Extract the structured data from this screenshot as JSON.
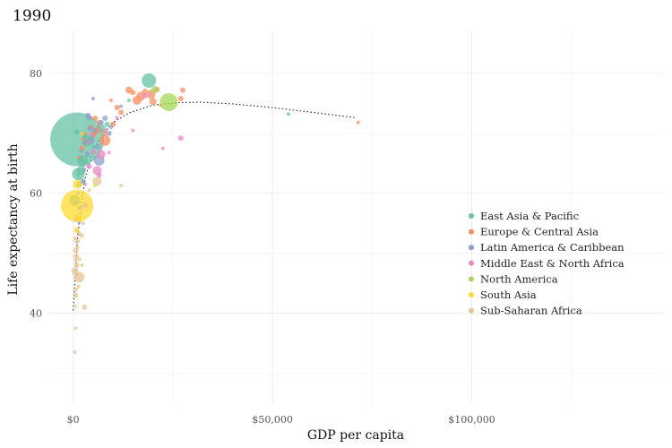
{
  "chart_data": {
    "type": "scatter",
    "title": "1990",
    "xlabel": "GDP per capita",
    "ylabel": "Life expectancy at birth",
    "xlim": [
      -6000,
      148000
    ],
    "ylim": [
      25,
      87
    ],
    "x_ticks": [
      0,
      50000,
      100000
    ],
    "x_tick_labels": [
      "$0",
      "$50,000",
      "$100,000"
    ],
    "y_ticks": [
      40,
      60,
      80
    ],
    "y_tick_labels": [
      "40",
      "60",
      "80"
    ],
    "x_minor": [
      25000,
      75000,
      125000
    ],
    "y_minor": [
      30,
      50,
      70
    ],
    "grid": true,
    "legend_position": "right",
    "series": [
      {
        "name": "East Asia & Pacific",
        "color": "#66c2a5",
        "points": [
          [
            1000,
            69,
            30
          ],
          [
            400,
            58.8,
            6
          ],
          [
            1300,
            63.2,
            7
          ],
          [
            2400,
            65.3,
            6
          ],
          [
            2000,
            63.8,
            5
          ],
          [
            1800,
            65.8,
            4
          ],
          [
            3500,
            68.7,
            6
          ],
          [
            7000,
            70.8,
            5
          ],
          [
            19000,
            78.8,
            8
          ],
          [
            54000,
            73.2,
            2
          ],
          [
            1500,
            61.5,
            3
          ],
          [
            3000,
            69.5,
            3
          ],
          [
            5000,
            67.8,
            2
          ],
          [
            900,
            70.2,
            3
          ],
          [
            2200,
            67.3,
            2
          ],
          [
            2600,
            61.8,
            2
          ],
          [
            1400,
            57.6,
            2
          ],
          [
            1200,
            63,
            2
          ],
          [
            14000,
            75.5,
            2
          ],
          [
            8500,
            71.5,
            3
          ]
        ]
      },
      {
        "name": "Europe & Central Asia",
        "color": "#fc8d62",
        "points": [
          [
            19500,
            76.5,
            5
          ],
          [
            17000,
            76.2,
            5
          ],
          [
            14000,
            77.2,
            4
          ],
          [
            16000,
            75.5,
            5
          ],
          [
            20000,
            75.3,
            4
          ],
          [
            27000,
            75.8,
            3
          ],
          [
            27500,
            77.2,
            3
          ],
          [
            71500,
            71.8,
            2
          ],
          [
            8000,
            68.8,
            6
          ],
          [
            5000,
            69.8,
            4
          ],
          [
            6000,
            70.5,
            4
          ],
          [
            4500,
            71,
            3
          ],
          [
            3500,
            68.5,
            3
          ],
          [
            10000,
            71.5,
            3
          ],
          [
            12000,
            73.5,
            3
          ],
          [
            11000,
            74.3,
            3
          ],
          [
            15000,
            76.8,
            3
          ],
          [
            2200,
            67.5,
            3
          ],
          [
            1500,
            66,
            2
          ],
          [
            5500,
            72.5,
            3
          ],
          [
            6500,
            71.8,
            3
          ],
          [
            18000,
            77,
            3
          ],
          [
            22000,
            74.7,
            2
          ],
          [
            9500,
            75.5,
            2
          ],
          [
            21000,
            77.3,
            3
          ],
          [
            8000,
            70,
            3
          ],
          [
            3000,
            70,
            2
          ],
          [
            2500,
            69,
            2
          ]
        ]
      },
      {
        "name": "Latin America & Caribbean",
        "color": "#8da0cb",
        "points": [
          [
            6500,
            65.5,
            6
          ],
          [
            4500,
            68.8,
            4
          ],
          [
            4000,
            72.6,
            3
          ],
          [
            3000,
            68.5,
            3
          ],
          [
            9000,
            70,
            3
          ],
          [
            7000,
            71.8,
            3
          ],
          [
            5000,
            75.8,
            2
          ],
          [
            2500,
            62,
            3
          ],
          [
            1500,
            55.2,
            2
          ],
          [
            3500,
            66.5,
            3
          ],
          [
            5500,
            70.5,
            3
          ],
          [
            8000,
            72.5,
            3
          ],
          [
            4200,
            70.8,
            3
          ],
          [
            6200,
            67.8,
            3
          ],
          [
            2800,
            64,
            2
          ],
          [
            3700,
            73,
            3
          ],
          [
            4800,
            69.5,
            2
          ],
          [
            9500,
            71,
            2
          ],
          [
            12000,
            74.5,
            2
          ],
          [
            2000,
            67,
            2
          ]
        ]
      },
      {
        "name": "Middle East & North Africa",
        "color": "#e78ac3",
        "points": [
          [
            6000,
            63.8,
            5
          ],
          [
            7000,
            66.5,
            5
          ],
          [
            4000,
            64.5,
            3
          ],
          [
            27000,
            69.2,
            3
          ],
          [
            22500,
            67.5,
            2
          ],
          [
            9000,
            66.8,
            2
          ],
          [
            11000,
            72.6,
            2
          ],
          [
            15000,
            70.5,
            2
          ],
          [
            5000,
            67,
            3
          ],
          [
            3000,
            61.5,
            2
          ],
          [
            4500,
            69.8,
            2
          ],
          [
            18000,
            76.3,
            3
          ],
          [
            6500,
            63,
            3
          ],
          [
            8000,
            70.5,
            2
          ]
        ]
      },
      {
        "name": "North America",
        "color": "#a6d854",
        "points": [
          [
            24000,
            75.2,
            10
          ],
          [
            20500,
            77.3,
            4
          ]
        ]
      },
      {
        "name": "South Asia",
        "color": "#ffd92f",
        "points": [
          [
            1000,
            57.9,
            18
          ],
          [
            1100,
            61.5,
            5
          ],
          [
            1300,
            55.8,
            4
          ],
          [
            900,
            53.8,
            3
          ],
          [
            2200,
            69.9,
            2
          ],
          [
            5500,
            61.3,
            2
          ],
          [
            700,
            56,
            2
          ],
          [
            800,
            54,
            2
          ]
        ]
      },
      {
        "name": "Sub-Saharan Africa",
        "color": "#e5c494",
        "points": [
          [
            1500,
            46,
            6
          ],
          [
            400,
            47,
            4
          ],
          [
            600,
            43,
            3
          ],
          [
            800,
            49.5,
            3
          ],
          [
            1000,
            52,
            3
          ],
          [
            700,
            50.5,
            3
          ],
          [
            2000,
            53,
            3
          ],
          [
            500,
            41.2,
            2
          ],
          [
            2800,
            41,
            3
          ],
          [
            600,
            37.5,
            2
          ],
          [
            400,
            33.5,
            2
          ],
          [
            1300,
            44.5,
            2
          ],
          [
            900,
            48,
            3
          ],
          [
            1100,
            51,
            2
          ],
          [
            600,
            55.5,
            2
          ],
          [
            3000,
            58,
            3
          ],
          [
            12000,
            61.3,
            2
          ],
          [
            4000,
            60.5,
            2
          ],
          [
            1800,
            57.5,
            2
          ],
          [
            900,
            46.5,
            2
          ],
          [
            700,
            44,
            2
          ],
          [
            1600,
            49,
            2
          ],
          [
            2500,
            55,
            2
          ],
          [
            500,
            52.5,
            2
          ],
          [
            800,
            58.5,
            2
          ],
          [
            1200,
            60,
            2
          ],
          [
            6000,
            62,
            5
          ],
          [
            2200,
            48,
            2
          ],
          [
            1400,
            53.5,
            2
          ],
          [
            700,
            48.8,
            2
          ]
        ]
      }
    ],
    "trend": {
      "style": "dotted",
      "color": "#222222",
      "points": [
        [
          0,
          40.5
        ],
        [
          500,
          46
        ],
        [
          1000,
          52
        ],
        [
          2000,
          58
        ],
        [
          3000,
          62.5
        ],
        [
          4500,
          66
        ],
        [
          6000,
          68.3
        ],
        [
          8000,
          70.3
        ],
        [
          10000,
          71.8
        ],
        [
          14000,
          73.4
        ],
        [
          20000,
          74.7
        ],
        [
          26000,
          75.1
        ],
        [
          32000,
          75.2
        ],
        [
          40000,
          74.9
        ],
        [
          50000,
          74.3
        ],
        [
          60000,
          73.5
        ],
        [
          71000,
          72.6
        ]
      ]
    }
  }
}
